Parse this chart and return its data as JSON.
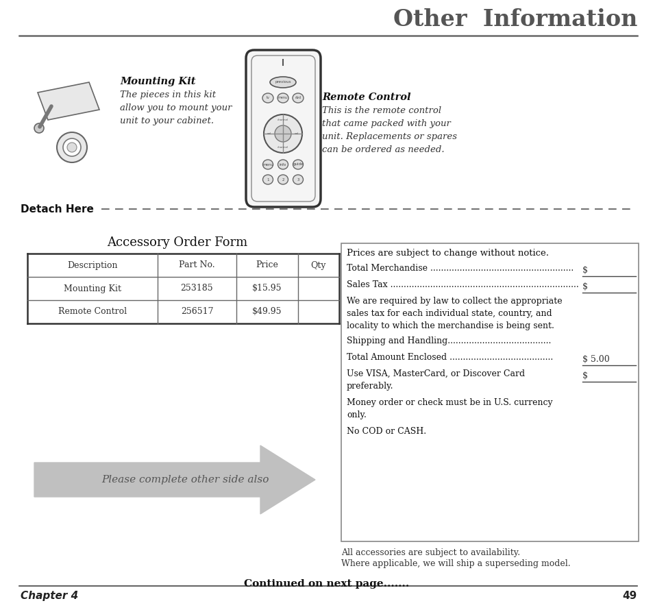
{
  "title": "Other  Information",
  "title_color": "#555555",
  "header_line_color": "#555555",
  "detach_text": "Detach Here",
  "chapter_text": "Chapter 4",
  "page_num": "49",
  "mounting_kit_title": "Mounting Kit",
  "mounting_kit_desc": "The pieces in this kit\nallow you to mount your\nunit to your cabinet.",
  "remote_title": "Remote Control",
  "remote_desc": "This is the remote control\nthat came packed with your\nunit. Replacements or spares\ncan be ordered as needed.",
  "order_form_title": "Accessory Order Form",
  "table_headers": [
    "Description",
    "Part No.",
    "Price",
    "Qty"
  ],
  "table_rows": [
    [
      "Mounting Kit",
      "253185",
      "$15.95",
      ""
    ],
    [
      "Remote Control",
      "256517",
      "$49.95",
      ""
    ]
  ],
  "arrow_text": "Please complete other side also",
  "arrow_color": "#c0c0c0",
  "arrow_text_color": "#555555",
  "box_title": "Prices are subject to change without notice.",
  "footer_note1": "All accessories are subject to availability.",
  "footer_note2": "Where applicable, we will ship a superseding model.",
  "continued": "Continued on next page.......",
  "bg_color": "#ffffff"
}
